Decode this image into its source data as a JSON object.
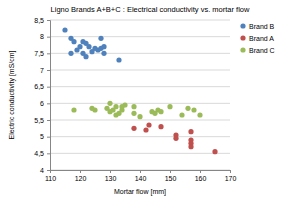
{
  "chart_data": {
    "type": "scatter",
    "title": "Ligno Brands A+B+C : Electrical conductivity vs. mortar flow",
    "x_label": "Mortar flow [mm]",
    "y_label": "Electric conductivity [mS/cm]",
    "xlim": [
      110,
      170
    ],
    "xticks": [
      110,
      120,
      130,
      140,
      150,
      160,
      170
    ],
    "ylim": [
      4,
      8.5
    ],
    "yticks": [
      4,
      {
        "value": 4.5,
        "label": "4,5"
      },
      5,
      {
        "value": 5.5,
        "label": "5,5"
      },
      6,
      {
        "value": 6.5,
        "label": "6,5"
      },
      7,
      {
        "value": 7.5,
        "label": "7,5"
      },
      8,
      {
        "value": 8.5,
        "label": "8,5"
      }
    ],
    "grid": true,
    "legend": "right",
    "marker": "circle",
    "series": [
      {
        "name": "Brand B",
        "color": "#4f81bd",
        "x": [
          115,
          117,
          117,
          118,
          119,
          120,
          121,
          121,
          122,
          122,
          123,
          124,
          125,
          126,
          127,
          127,
          128,
          128,
          133
        ],
        "values": [
          8.2,
          7.95,
          7.5,
          7.85,
          7.6,
          7.7,
          7.85,
          7.5,
          7.8,
          7.4,
          7.7,
          7.55,
          7.65,
          7.6,
          7.95,
          7.65,
          7.5,
          7.7,
          7.3
        ]
      },
      {
        "name": "Brand A",
        "color": "#c0504d",
        "x": [
          138,
          142,
          143,
          147,
          152,
          152,
          157,
          157,
          157,
          157,
          165
        ],
        "values": [
          5.25,
          5.2,
          5.35,
          5.3,
          5.05,
          4.95,
          5.15,
          4.9,
          4.8,
          4.7,
          4.55
        ]
      },
      {
        "name": "Brand C",
        "color": "#9bbb59",
        "x": [
          118,
          124,
          125,
          129,
          130,
          130,
          131,
          132,
          132,
          133,
          134,
          134,
          135,
          138,
          138,
          140,
          144,
          145,
          146,
          147,
          150,
          154,
          156,
          158,
          160
        ],
        "values": [
          5.8,
          5.85,
          5.8,
          5.85,
          6.0,
          5.75,
          5.8,
          5.65,
          5.9,
          5.7,
          5.8,
          5.9,
          5.95,
          5.9,
          5.7,
          5.6,
          5.75,
          5.7,
          5.8,
          5.75,
          5.9,
          5.65,
          5.85,
          5.8,
          5.65
        ]
      }
    ]
  }
}
